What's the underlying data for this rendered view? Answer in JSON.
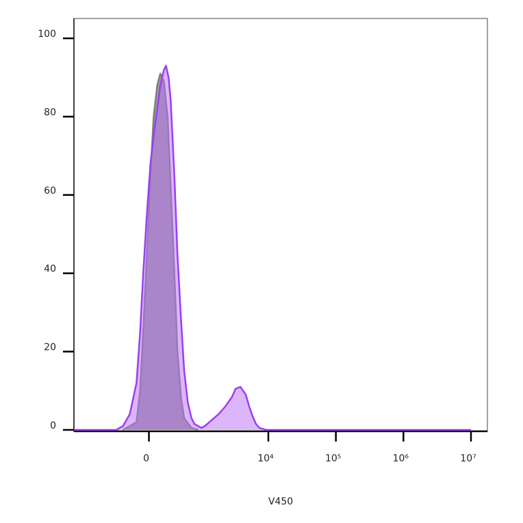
{
  "chart_data": {
    "type": "histogram-overlay",
    "x_label": "V450",
    "xscale": "biexponential",
    "xlim": [
      -2200,
      17500000
    ],
    "xticks": [
      {
        "value": 0,
        "label": "0"
      },
      {
        "value": 10000,
        "label": "10⁴"
      },
      {
        "value": 100000,
        "label": "10⁵"
      },
      {
        "value": 1000000,
        "label": "10⁶"
      },
      {
        "value": 10000000,
        "label": "10⁷"
      }
    ],
    "ylim": [
      0,
      100
    ],
    "yticks": [
      0,
      20,
      40,
      60,
      80,
      100
    ],
    "series": [
      {
        "color": "#7f7f7f",
        "fill": "#8c8c8c",
        "fill_opacity": 0.85,
        "x": [
          -500,
          -240,
          -170,
          -110,
          -40,
          30,
          90,
          160,
          220,
          290,
          360,
          420,
          490,
          550,
          620,
          680,
          820,
          950
        ],
        "values": [
          0,
          2,
          10,
          25,
          45,
          65,
          80,
          88,
          91,
          89,
          80,
          62,
          40,
          20,
          8,
          3,
          0.5,
          0
        ]
      },
      {
        "color": "#9a3ff0",
        "fill": "#b86ef5",
        "fill_opacity": 0.5,
        "x": [
          -2200,
          -630,
          -500,
          -370,
          -240,
          -170,
          -110,
          -40,
          30,
          90,
          160,
          220,
          290,
          330,
          380,
          420,
          490,
          550,
          620,
          680,
          750,
          820,
          880,
          950,
          1020,
          1150,
          1450,
          1830,
          2310,
          2910,
          3270,
          3850,
          4640,
          5210,
          5850,
          6580,
          7390,
          9330,
          10000000
        ],
        "values": [
          0,
          0,
          1,
          4,
          12,
          25,
          40,
          55,
          68,
          75,
          82,
          88,
          92,
          93,
          90,
          84,
          65,
          45,
          28,
          15,
          7,
          3,
          1.5,
          1,
          0.5,
          1,
          2.5,
          4,
          6,
          8.5,
          10.5,
          11,
          9,
          6,
          3.5,
          1.5,
          0.5,
          0,
          0
        ]
      }
    ]
  }
}
